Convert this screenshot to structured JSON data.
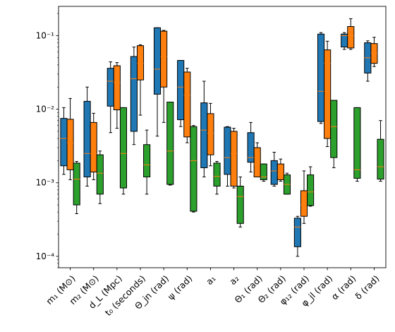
{
  "chart_data": {
    "type": "box",
    "title": "",
    "xlabel": "",
    "ylabel": "",
    "yscale": "log",
    "ylim": [
      7e-05,
      0.25
    ],
    "y_ticks": [
      {
        "value": 0.0001,
        "label": "10⁻⁴"
      },
      {
        "value": 0.001,
        "label": "10⁻³"
      },
      {
        "value": 0.01,
        "label": "10⁻²"
      },
      {
        "value": 0.1,
        "label": "10⁻¹"
      }
    ],
    "grid": false,
    "legend": "none",
    "categories": [
      "m₁ (M⊙)",
      "m₂ (M⊙)",
      "d_L (Mpc)",
      "t₀ (seconds)",
      "Θ_jn (rad)",
      "ψ (rad)",
      "a₁",
      "a₂",
      "Θ₁ (rad)",
      "Θ₂ (rad)",
      "φ₁₂ (rad)",
      "φ_jl (rad)",
      "α (rad)",
      "δ (rad)"
    ],
    "series": [
      {
        "color": "#1f77b4",
        "boxes": [
          {
            "whislo": 0.0013,
            "q1": 0.0017,
            "med": 0.004,
            "q3": 0.0075,
            "whishi": 0.0105
          },
          {
            "whislo": 0.0009,
            "q1": 0.0012,
            "med": 0.0025,
            "q3": 0.0128,
            "whishi": 0.02
          },
          {
            "whislo": 0.0048,
            "q1": 0.011,
            "med": 0.024,
            "q3": 0.036,
            "whishi": 0.044
          },
          {
            "whislo": 0.0033,
            "q1": 0.005,
            "med": 0.026,
            "q3": 0.052,
            "whishi": 0.07
          },
          {
            "whislo": 0.0043,
            "q1": 0.016,
            "med": 0.035,
            "q3": 0.128,
            "whishi": 0.128
          },
          {
            "whislo": 0.0058,
            "q1": 0.0072,
            "med": 0.02,
            "q3": 0.046,
            "whishi": 0.046
          },
          {
            "whislo": 0.0012,
            "q1": 0.0016,
            "med": 0.0052,
            "q3": 0.0122,
            "whishi": 0.024
          },
          {
            "whislo": 0.0009,
            "q1": 0.0013,
            "med": 0.0022,
            "q3": 0.0057,
            "whishi": 0.0058
          },
          {
            "whislo": 0.0014,
            "q1": 0.0019,
            "med": 0.0022,
            "q3": 0.0048,
            "whishi": 0.0066
          },
          {
            "whislo": 0.0009,
            "q1": 0.00095,
            "med": 0.00145,
            "q3": 0.002,
            "whishi": 0.0026
          },
          {
            "whislo": 0.0001,
            "q1": 0.000135,
            "med": 0.00025,
            "q3": 0.00033,
            "whishi": 0.00035
          },
          {
            "whislo": 0.0064,
            "q1": 0.0068,
            "med": 0.0175,
            "q3": 0.105,
            "whishi": 0.11
          },
          {
            "whislo": 0.065,
            "q1": 0.07,
            "med": 0.1,
            "q3": 0.105,
            "whishi": 0.11
          },
          {
            "whislo": 0.024,
            "q1": 0.031,
            "med": 0.05,
            "q3": 0.08,
            "whishi": 0.085
          }
        ]
      },
      {
        "color": "#ff7f0e",
        "boxes": [
          {
            "whislo": 0.0011,
            "q1": 0.0015,
            "med": 0.0035,
            "q3": 0.0073,
            "whishi": 0.014
          },
          {
            "whislo": 0.0011,
            "q1": 0.0014,
            "med": 0.0025,
            "q3": 0.0066,
            "whishi": 0.0088
          },
          {
            "whislo": 0.0055,
            "q1": 0.0098,
            "med": 0.023,
            "q3": 0.039,
            "whishi": 0.043
          },
          {
            "whislo": 0.0083,
            "q1": 0.025,
            "med": 0.042,
            "q3": 0.073,
            "whishi": 0.075
          },
          {
            "whislo": 0.0066,
            "q1": 0.02,
            "med": 0.052,
            "q3": 0.115,
            "whishi": 0.118
          },
          {
            "whislo": 0.0035,
            "q1": 0.0042,
            "med": 0.0155,
            "q3": 0.032,
            "whishi": 0.036
          },
          {
            "whislo": 0.0017,
            "q1": 0.0024,
            "med": 0.0047,
            "q3": 0.0087,
            "whishi": 0.012
          },
          {
            "whislo": 0.00085,
            "q1": 0.0009,
            "med": 0.0025,
            "q3": 0.005,
            "whishi": 0.0055
          },
          {
            "whislo": 0.0012,
            "q1": 0.0012,
            "med": 0.0018,
            "q3": 0.003,
            "whishi": 0.0035
          },
          {
            "whislo": 0.00105,
            "q1": 0.0011,
            "med": 0.0013,
            "q3": 0.0018,
            "whishi": 0.0021
          },
          {
            "whislo": 0.00028,
            "q1": 0.00035,
            "med": 0.0005,
            "q3": 0.00078,
            "whishi": 0.00145
          },
          {
            "whislo": 0.0031,
            "q1": 0.004,
            "med": 0.042,
            "q3": 0.064,
            "whishi": 0.084
          },
          {
            "whislo": 0.065,
            "q1": 0.068,
            "med": 0.1,
            "q3": 0.133,
            "whishi": 0.17
          },
          {
            "whislo": 0.038,
            "q1": 0.042,
            "med": 0.058,
            "q3": 0.078,
            "whishi": 0.095
          }
        ]
      },
      {
        "color": "#2ca02c",
        "boxes": [
          {
            "whislo": 0.00038,
            "q1": 0.0005,
            "med": 0.00112,
            "q3": 0.00185,
            "whishi": 0.00195
          },
          {
            "whislo": 0.00052,
            "q1": 0.0007,
            "med": 0.00135,
            "q3": 0.0024,
            "whishi": 0.0027
          },
          {
            "whislo": 0.0007,
            "q1": 0.00085,
            "med": 0.0025,
            "q3": 0.0105,
            "whishi": 0.0105
          },
          {
            "whislo": 0.0007,
            "q1": 0.0012,
            "med": 0.00175,
            "q3": 0.0033,
            "whishi": 0.0052
          },
          {
            "whislo": 0.00093,
            "q1": 0.00095,
            "med": 0.0027,
            "q3": 0.0125,
            "whishi": 0.0125
          },
          {
            "whislo": 0.0004,
            "q1": 0.00041,
            "med": 0.002,
            "q3": 0.0058,
            "whishi": 0.006
          },
          {
            "whislo": 0.0007,
            "q1": 0.0009,
            "med": 0.00122,
            "q3": 0.00185,
            "whishi": 0.00195
          },
          {
            "whislo": 0.00025,
            "q1": 0.00028,
            "med": 0.00065,
            "q3": 0.0009,
            "whishi": 0.0012
          },
          {
            "whislo": 0.00105,
            "q1": 0.0011,
            "med": 0.0012,
            "q3": 0.0018,
            "whishi": 0.0018
          },
          {
            "whislo": 0.0007,
            "q1": 0.0007,
            "med": 0.00095,
            "q3": 0.00128,
            "whishi": 0.00135
          },
          {
            "whislo": 0.00048,
            "q1": 0.00049,
            "med": 0.00075,
            "q3": 0.00128,
            "whishi": 0.00165
          },
          {
            "whislo": 0.0016,
            "q1": 0.0022,
            "med": 0.0058,
            "q3": 0.0132,
            "whishi": 0.0132
          },
          {
            "whislo": 0.00105,
            "q1": 0.00115,
            "med": 0.0015,
            "q3": 0.0105,
            "whishi": 0.0105
          },
          {
            "whislo": 0.00105,
            "q1": 0.00112,
            "med": 0.00165,
            "q3": 0.0039,
            "whishi": 0.007
          }
        ]
      }
    ]
  }
}
